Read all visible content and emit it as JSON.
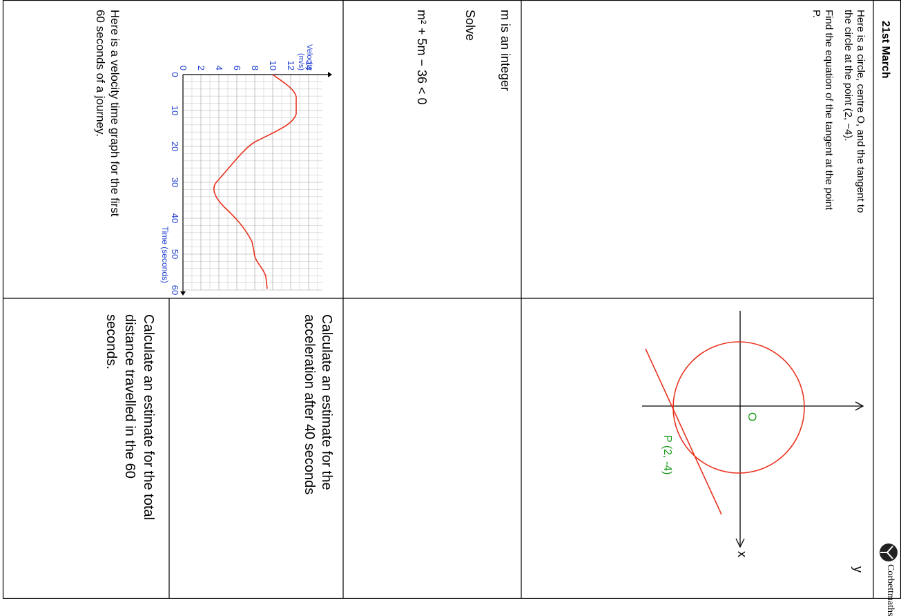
{
  "header": {
    "title": "21st March",
    "logo": "Corbettmaths"
  },
  "questions": [
    {
      "lines": [
        "Here is a circle, centre O, and the tangent to",
        "the circle at the point (2, −4).",
        "Find the equation of the tangent at the point",
        "P."
      ],
      "diagram": {
        "y_axis": "y",
        "x_axis": "x",
        "origin": "O",
        "point": "P (2, -4)"
      }
    },
    {
      "lines": [
        "m is an integer",
        "Solve",
        "m² + 5m − 36 < 0"
      ]
    },
    {
      "graph": {
        "y_label": [
          "Velocity",
          "(m/s)"
        ],
        "x_label": "Time (seconds)",
        "yticks": [
          0,
          2,
          4,
          6,
          8,
          10,
          12,
          14
        ],
        "xticks": [
          0,
          10,
          20,
          30,
          40,
          50,
          60
        ]
      },
      "lines": [
        "Here is a velocity time graph for the first",
        "60 seconds of a journey."
      ],
      "part_a": [
        "Calculate an estimate for the",
        "acceleration after 40 seconds"
      ],
      "part_b": [
        "Calculate an estimate for the total",
        "distance travelled in the 60",
        "seconds."
      ]
    }
  ]
}
